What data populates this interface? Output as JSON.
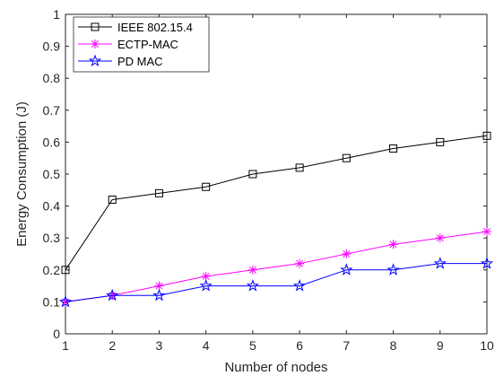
{
  "chart_data": {
    "type": "line",
    "title": "",
    "xlabel": "Number of nodes",
    "ylabel": "Energy Consumption (J)",
    "x": [
      1,
      2,
      3,
      4,
      5,
      6,
      7,
      8,
      9,
      10
    ],
    "xlim": [
      1,
      10
    ],
    "ylim": [
      0,
      1
    ],
    "xticks": [
      "1",
      "2",
      "3",
      "4",
      "5",
      "6",
      "7",
      "8",
      "9",
      "10"
    ],
    "yticks": [
      "0",
      "0.1",
      "0.2",
      "0.3",
      "0.4",
      "0.5",
      "0.6",
      "0.7",
      "0.8",
      "0.9",
      "1"
    ],
    "grid": false,
    "legend_position": "top-left",
    "series": [
      {
        "name": "IEEE 802.15.4",
        "color": "#000000",
        "marker": "square",
        "values": [
          0.2,
          0.42,
          0.44,
          0.46,
          0.5,
          0.52,
          0.55,
          0.58,
          0.6,
          0.62
        ]
      },
      {
        "name": "ECTP-MAC",
        "color": "#ff00ff",
        "marker": "asterisk",
        "values": [
          0.1,
          0.12,
          0.15,
          0.18,
          0.2,
          0.22,
          0.25,
          0.28,
          0.3,
          0.32
        ]
      },
      {
        "name": "PD MAC",
        "color": "#0000ff",
        "marker": "pentagram",
        "values": [
          0.1,
          0.12,
          0.12,
          0.15,
          0.15,
          0.15,
          0.2,
          0.2,
          0.22,
          0.22
        ]
      }
    ]
  }
}
